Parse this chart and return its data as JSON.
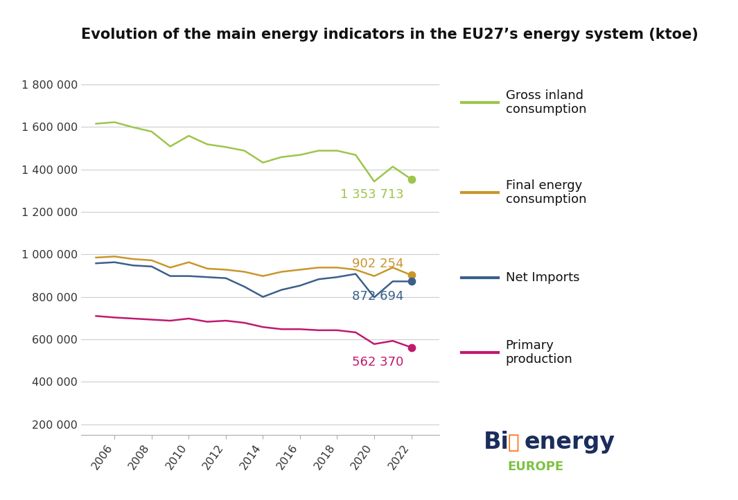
{
  "title": "Evolution of the main energy indicators in the EU27’s energy system (ktoe)",
  "years": [
    2005,
    2006,
    2007,
    2008,
    2009,
    2010,
    2011,
    2012,
    2013,
    2014,
    2015,
    2016,
    2017,
    2018,
    2019,
    2020,
    2021,
    2022
  ],
  "gross_inland": [
    1615000,
    1622000,
    1598000,
    1578000,
    1508000,
    1558000,
    1518000,
    1505000,
    1488000,
    1432000,
    1458000,
    1468000,
    1488000,
    1488000,
    1468000,
    1343000,
    1413000,
    1353713
  ],
  "final_energy": [
    985000,
    990000,
    978000,
    972000,
    938000,
    963000,
    933000,
    928000,
    918000,
    898000,
    918000,
    928000,
    938000,
    938000,
    928000,
    898000,
    938000,
    902254
  ],
  "net_imports": [
    958000,
    963000,
    948000,
    943000,
    898000,
    898000,
    893000,
    888000,
    848000,
    800000,
    833000,
    853000,
    883000,
    893000,
    908000,
    798000,
    873000,
    872694
  ],
  "primary_prod": [
    710000,
    703000,
    698000,
    693000,
    688000,
    698000,
    683000,
    688000,
    678000,
    658000,
    648000,
    648000,
    643000,
    643000,
    633000,
    578000,
    593000,
    562370
  ],
  "gross_inland_color": "#9DC54B",
  "final_energy_color": "#C8962A",
  "net_imports_color": "#3B5F8A",
  "primary_prod_color": "#C0196E",
  "label_gross_inland": "1 353 713",
  "label_final_energy": "902 254",
  "label_net_imports": "872 694",
  "label_primary_prod": "562 370",
  "legend_gross_inland": "Gross inland\nconsumption",
  "legend_final_energy": "Final energy\nconsumption",
  "legend_net_imports": "Net Imports",
  "legend_primary_prod": "Primary\nproduction",
  "ylim": [
    150000,
    1950000
  ],
  "yticks": [
    200000,
    400000,
    600000,
    800000,
    1000000,
    1200000,
    1400000,
    1600000,
    1800000
  ],
  "ytick_labels": [
    "200 000",
    "400 000",
    "600 000",
    "800 000",
    "1 000 000",
    "1 200 000",
    "1 400 000",
    "1 600 000",
    "1 800 000"
  ],
  "xticks": [
    2006,
    2008,
    2010,
    2012,
    2014,
    2016,
    2018,
    2020,
    2022
  ],
  "xlim": [
    2004.2,
    2023.5
  ],
  "background_color": "#ffffff",
  "title_fontsize": 15,
  "tick_fontsize": 11.5,
  "label_fontsize": 13,
  "legend_fontsize": 13
}
